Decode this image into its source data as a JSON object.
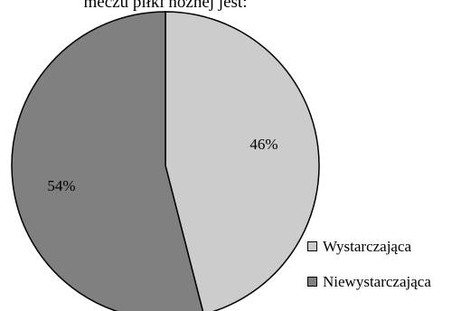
{
  "chart_data": {
    "type": "pie",
    "title": "meczu piłki nożnej jest:",
    "slices": [
      {
        "label": "Wystarczająca",
        "value": 46,
        "display": "46%",
        "color": "#cccccc"
      },
      {
        "label": "Niewystarczająca",
        "value": 54,
        "display": "54%",
        "color": "#808080"
      }
    ],
    "legend": [
      {
        "label": "Wystarczająca",
        "color": "#cccccc"
      },
      {
        "label": "Niewystarczająca",
        "color": "#808080"
      }
    ],
    "legend_position": "bottom-right",
    "start_angle_deg": 0,
    "direction": "clockwise"
  }
}
